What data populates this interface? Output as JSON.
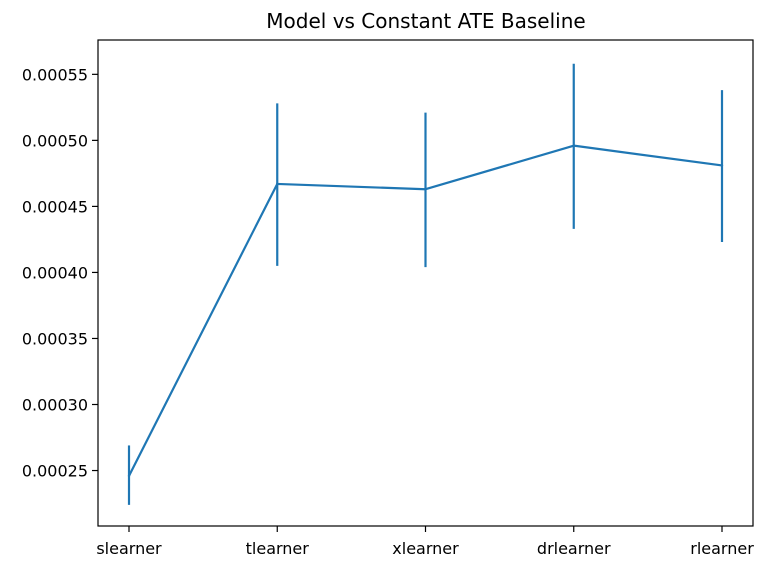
{
  "chart_data": {
    "type": "line",
    "title": "Model vs Constant ATE Baseline",
    "xlabel": "",
    "ylabel": "",
    "categories": [
      "slearner",
      "tlearner",
      "xlearner",
      "drlearner",
      "rlearner"
    ],
    "series": [
      {
        "color": "#1f77b4",
        "values": [
          0.000246,
          0.000467,
          0.000463,
          0.000496,
          0.000481
        ],
        "error_low": [
          0.000224,
          0.000405,
          0.000404,
          0.000433,
          0.000423
        ],
        "error_high": [
          0.000269,
          0.000528,
          0.000521,
          0.000558,
          0.000538
        ]
      }
    ],
    "ylim": [
      0.000208,
      0.000576
    ],
    "yticks": [
      0.00025,
      0.0003,
      0.00035,
      0.0004,
      0.00045,
      0.0005,
      0.00055
    ],
    "ytick_labels": [
      "0.00025",
      "0.00030",
      "0.00035",
      "0.00040",
      "0.00045",
      "0.00050",
      "0.00055"
    ],
    "grid": false,
    "legend": "none"
  }
}
